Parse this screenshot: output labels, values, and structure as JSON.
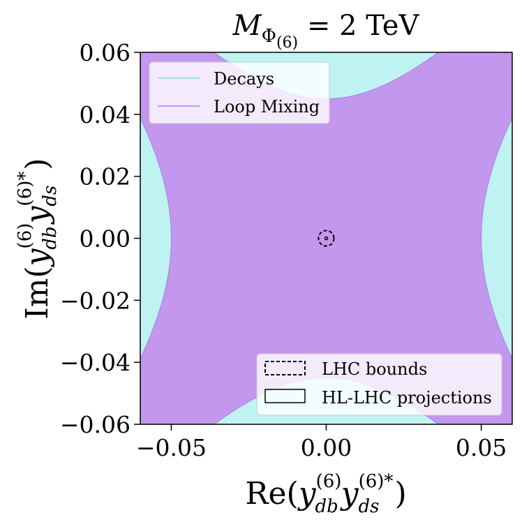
{
  "chart_data": {
    "type": "area",
    "title": {
      "main": "M",
      "sub": "Φ",
      "subsub": "(6)",
      "rest": " = 2 TeV"
    },
    "xlabel": {
      "prefix": "Re(",
      "y1": "y",
      "y1_sup": "(6)",
      "y1_sub": "db",
      "y2": "y",
      "y2_sup": "(6)*",
      "y2_sub": "ds",
      "suffix": ")"
    },
    "ylabel": {
      "prefix": "Im(",
      "y1": "y",
      "y1_sup": "(6)",
      "y1_sub": "db",
      "y2": "y",
      "y2_sup": "(6)*",
      "y2_sub": "ds",
      "suffix": ")"
    },
    "xlim": [
      -0.06,
      0.06
    ],
    "ylim": [
      -0.06,
      0.06
    ],
    "xticks": [
      -0.05,
      0.0,
      0.05
    ],
    "xtick_labels": [
      "−0.05",
      "0.00",
      "0.05"
    ],
    "yticks": [
      -0.06,
      -0.04,
      -0.02,
      0.0,
      0.02,
      0.04,
      0.06
    ],
    "ytick_labels": [
      "−0.06",
      "−0.04",
      "−0.02",
      "0.00",
      "0.02",
      "0.04",
      "0.06"
    ],
    "regions": {
      "decays": {
        "label": "Decays",
        "color": "#bff3f2",
        "line_color": "#7fdede"
      },
      "loop_mixing": {
        "label": "Loop Mixing",
        "color": "#c497ee",
        "line_color": "#a87ee6",
        "side_hyperbola": {
          "a": 0.05,
          "c": 0.0585
        },
        "top_hyperbola": {
          "a": 0.045,
          "c": 0.041
        }
      }
    },
    "contours": {
      "lhc_bounds": {
        "label": "LHC bounds",
        "style": "dashed",
        "center": [
          0.0,
          0.0
        ],
        "radius": 0.0025
      },
      "hl_lhc_projections": {
        "label": "HL-LHC projections",
        "style": "solid",
        "center": [
          0.0,
          0.0
        ],
        "radius": 0.0002
      }
    },
    "legends": [
      {
        "position": "top-left",
        "entries": [
          "Decays",
          "Loop Mixing"
        ]
      },
      {
        "position": "bottom-right",
        "entries": [
          "LHC bounds",
          "HL-LHC projections"
        ]
      }
    ]
  },
  "colors": {
    "decays": "#bff3f2",
    "loop_mixing": "#c497ee",
    "axis": "#000000"
  }
}
